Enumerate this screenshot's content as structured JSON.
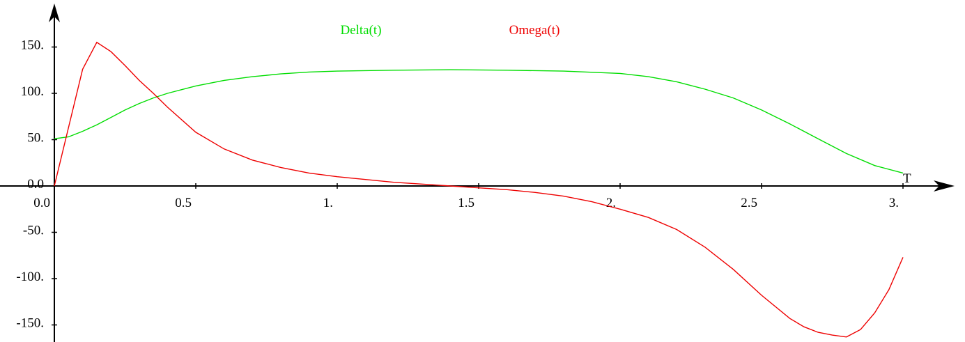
{
  "chart_data": {
    "type": "line",
    "xlabel": "T",
    "ylabel": "",
    "title": "",
    "xlim": [
      0.0,
      3.0
    ],
    "ylim": [
      -165,
      165
    ],
    "x_ticks": [
      {
        "value": 0.0,
        "label": "0.0"
      },
      {
        "value": 0.5,
        "label": "0.5"
      },
      {
        "value": 1.0,
        "label": "1."
      },
      {
        "value": 1.5,
        "label": "1.5"
      },
      {
        "value": 2.0,
        "label": "2."
      },
      {
        "value": 2.5,
        "label": "2.5"
      },
      {
        "value": 3.0,
        "label": "3."
      }
    ],
    "y_ticks": [
      {
        "value": 150,
        "label": "150."
      },
      {
        "value": 100,
        "label": "100."
      },
      {
        "value": 50,
        "label": "50."
      },
      {
        "value": 0,
        "label": "0.0"
      },
      {
        "value": -50,
        "label": "-50."
      },
      {
        "value": -100,
        "label": "-100."
      },
      {
        "value": -150,
        "label": "-150."
      }
    ],
    "grid": false,
    "legend_position": "top-center",
    "series": [
      {
        "name": "Delta(t)",
        "color": "#00dd00",
        "x": [
          0.0,
          0.05,
          0.1,
          0.15,
          0.2,
          0.25,
          0.3,
          0.35,
          0.4,
          0.45,
          0.5,
          0.6,
          0.7,
          0.8,
          0.9,
          1.0,
          1.2,
          1.4,
          1.6,
          1.8,
          2.0,
          2.1,
          2.2,
          2.3,
          2.4,
          2.5,
          2.6,
          2.7,
          2.8,
          2.9,
          3.0
        ],
        "values": [
          51,
          53,
          59,
          66,
          74,
          82,
          89,
          95,
          100,
          104,
          108,
          114,
          118,
          121,
          123,
          124,
          125,
          125.5,
          125,
          124,
          121.5,
          118,
          112.5,
          104.5,
          95,
          82,
          67,
          51,
          35,
          22,
          14
        ]
      },
      {
        "name": "Omega(t)",
        "color": "#ee0000",
        "x": [
          0.0,
          0.1,
          0.15,
          0.2,
          0.25,
          0.3,
          0.35,
          0.4,
          0.5,
          0.6,
          0.7,
          0.8,
          0.9,
          1.0,
          1.1,
          1.2,
          1.3,
          1.4,
          1.5,
          1.6,
          1.7,
          1.8,
          1.9,
          2.0,
          2.1,
          2.2,
          2.3,
          2.4,
          2.5,
          2.6,
          2.65,
          2.7,
          2.75,
          2.8,
          2.85,
          2.9,
          2.95,
          3.0
        ],
        "values": [
          0,
          126,
          155,
          145,
          130,
          114,
          100,
          85,
          58,
          40,
          28,
          20,
          14,
          10,
          7,
          4,
          2,
          0,
          -2,
          -4,
          -7,
          -11,
          -17,
          -25,
          -34,
          -47,
          -66,
          -90,
          -118,
          -143,
          -152,
          -158,
          -161,
          -163,
          -155,
          -137,
          -112,
          -77
        ]
      }
    ]
  }
}
